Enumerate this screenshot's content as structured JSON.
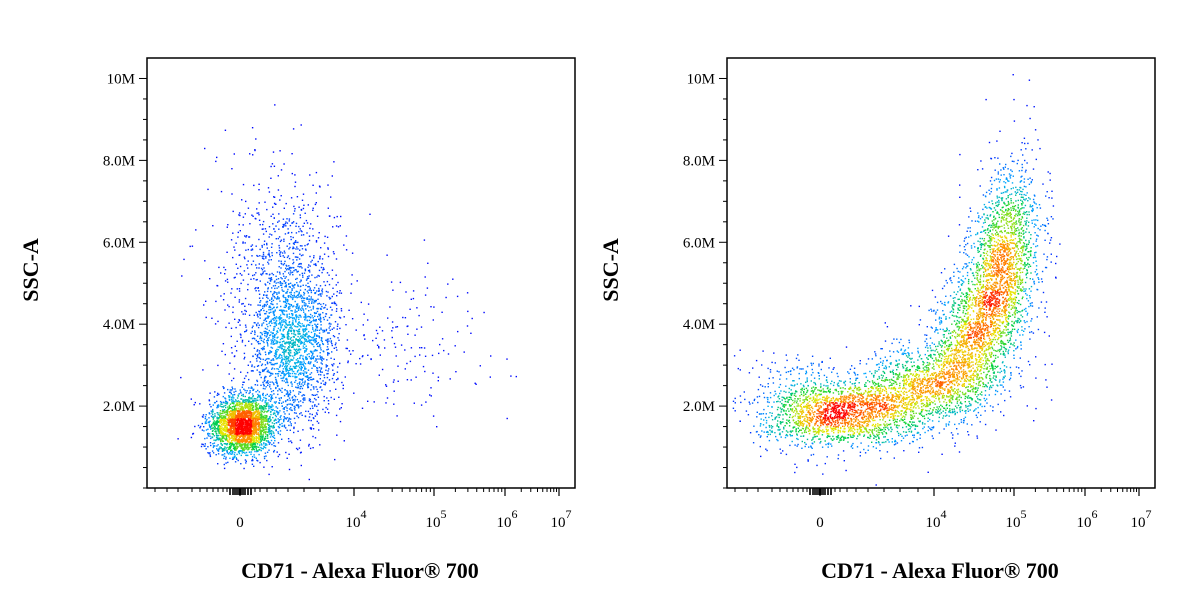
{
  "chart_data": [
    {
      "type": "scatter",
      "title": "",
      "xlabel": "CD71 - Alexa Fluor® 700",
      "ylabel": "SSC-A",
      "x_scale": "biexponential (log above 10^4)",
      "x_ticks": [
        {
          "base": "0",
          "exp": ""
        },
        {
          "base": "10",
          "exp": "4"
        },
        {
          "base": "10",
          "exp": "5"
        },
        {
          "base": "10",
          "exp": "6"
        },
        {
          "base": "10",
          "exp": "7"
        }
      ],
      "y_ticks": [
        "2.0M",
        "4.0M",
        "6.0M",
        "8.0M",
        "10M"
      ],
      "ylim": [
        0,
        10500000
      ],
      "color_scale": "density (blue low, red high)",
      "populations": [
        {
          "name": "",
          "x": 0,
          "y": 1700000,
          "relative_count": 0.45
        },
        {
          "name": "",
          "x": 2000,
          "y": 3500000,
          "relative_count": 0.35
        },
        {
          "name": "",
          "x": 60000,
          "y": 3700000,
          "relative_count": 0.04
        }
      ]
    },
    {
      "type": "scatter",
      "title": "",
      "xlabel": "CD71 - Alexa Fluor® 700",
      "ylabel": "SSC-A",
      "x_scale": "biexponential (log above 10^4)",
      "x_ticks": [
        {
          "base": "0",
          "exp": ""
        },
        {
          "base": "10",
          "exp": "4"
        },
        {
          "base": "10",
          "exp": "5"
        },
        {
          "base": "10",
          "exp": "6"
        },
        {
          "base": "10",
          "exp": "7"
        }
      ],
      "y_ticks": [
        "2.0M",
        "4.0M",
        "6.0M",
        "8.0M",
        "10M"
      ],
      "ylim": [
        0,
        10500000
      ],
      "color_scale": "density (blue low, red high)",
      "populations": [
        {
          "name": "",
          "x": 2000,
          "y": 2100000,
          "relative_count": 0.35
        },
        {
          "name": "",
          "x": 30000,
          "y": 3200000,
          "relative_count": 0.35
        },
        {
          "name": "",
          "x": 100000,
          "y": 5800000,
          "relative_count": 0.3
        }
      ]
    }
  ]
}
